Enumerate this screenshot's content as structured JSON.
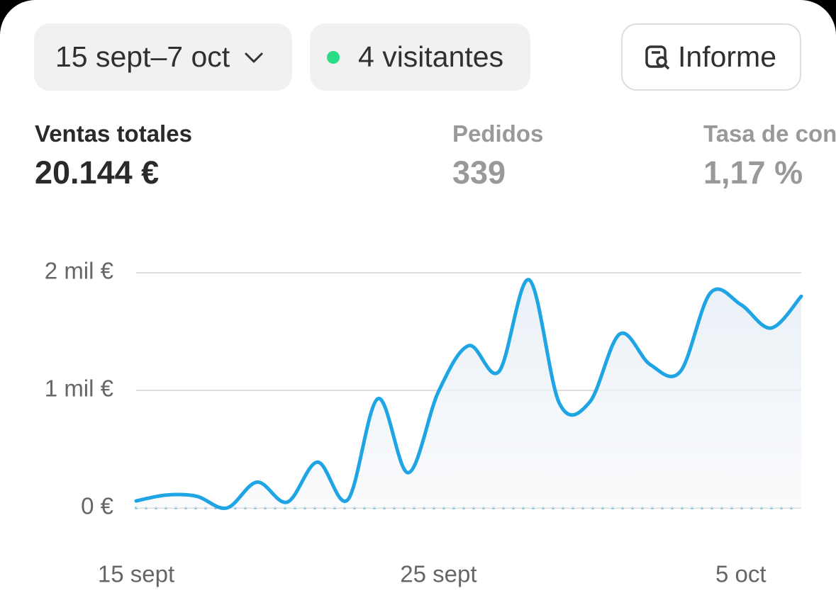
{
  "filters": {
    "date_range": "15 sept–7 oct",
    "visitors": "4 visitantes",
    "report": "Informe"
  },
  "metrics": [
    {
      "label": "Ventas totales",
      "value": "20.144 €"
    },
    {
      "label": "Pedidos",
      "value": "339"
    },
    {
      "label": "Tasa de conversión",
      "value": "1,17 %"
    }
  ],
  "chart_data": {
    "type": "line",
    "categories": [
      "15 sept",
      null,
      null,
      null,
      null,
      null,
      null,
      null,
      null,
      null,
      "25 sept",
      null,
      null,
      null,
      null,
      null,
      null,
      null,
      null,
      null,
      "5 oct",
      null,
      null
    ],
    "series": [
      {
        "color": "#1fa5e4",
        "values": [
          60,
          110,
          100,
          0,
          220,
          50,
          390,
          70,
          930,
          300,
          990,
          1380,
          1160,
          1940,
          890,
          900,
          1480,
          1220,
          1160,
          1830,
          1730,
          1530,
          1800
        ]
      },
      {
        "color": "#8cc3df",
        "dotted": true,
        "values": [
          0,
          0,
          0,
          0,
          0,
          0,
          0,
          0,
          0,
          0,
          0,
          0,
          0,
          0,
          0,
          0,
          0,
          0,
          0,
          0,
          0,
          0,
          0
        ]
      }
    ],
    "ylim": [
      0,
      2000
    ],
    "yticks": [
      {
        "value": 0,
        "label": "0 €"
      },
      {
        "value": 1000,
        "label": "1 mil €"
      },
      {
        "value": 2000,
        "label": "2 mil €"
      }
    ],
    "grid": true,
    "area": true
  }
}
